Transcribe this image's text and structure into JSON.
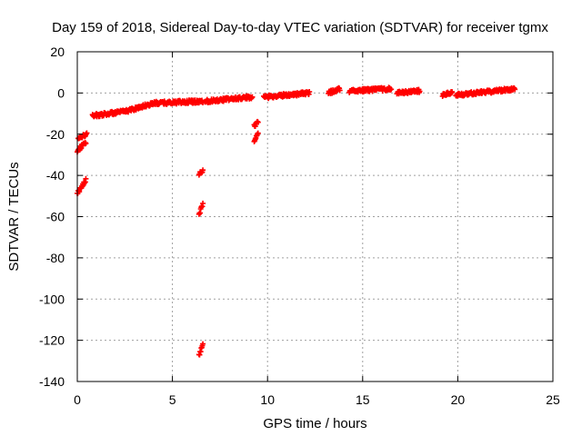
{
  "chart_data": {
    "type": "scatter",
    "title": "Day 159 of 2018, Sidereal Day-to-day VTEC variation (SDTVAR) for receiver tgmx",
    "xlabel": "GPS time / hours",
    "ylabel": "SDTVAR / TECUs",
    "xlim": [
      0,
      25
    ],
    "ylim": [
      -140,
      20
    ],
    "xticks": [
      0,
      5,
      10,
      15,
      20,
      25
    ],
    "yticks": [
      -140,
      -120,
      -100,
      -80,
      -60,
      -40,
      -20,
      0,
      20
    ],
    "grid": true,
    "marker": "plus",
    "series_color": "#ff0000",
    "clusters": [
      {
        "name": "early-low",
        "x": [
          0.0,
          0.45
        ],
        "y": [
          -49,
          -42
        ]
      },
      {
        "name": "early-mid",
        "x": [
          0.0,
          0.45
        ],
        "y": [
          -28,
          -24
        ]
      },
      {
        "name": "early-top",
        "x": [
          0.05,
          0.5
        ],
        "y": [
          -22,
          -20
        ]
      },
      {
        "name": "rise-1",
        "x": [
          0.8,
          2.5
        ],
        "y": [
          -11,
          -9
        ]
      },
      {
        "name": "rise-2",
        "x": [
          2.5,
          4.0
        ],
        "y": [
          -9,
          -5
        ]
      },
      {
        "name": "plateau-1",
        "x": [
          4.0,
          6.6
        ],
        "y": [
          -5,
          -4
        ]
      },
      {
        "name": "plateau-2",
        "x": [
          6.7,
          9.2
        ],
        "y": [
          -4,
          -2
        ]
      },
      {
        "name": "dip-6-5-a",
        "x": [
          6.4,
          6.6
        ],
        "y": [
          -39,
          -38
        ]
      },
      {
        "name": "dip-6-5-b",
        "x": [
          6.4,
          6.6
        ],
        "y": [
          -59,
          -54
        ]
      },
      {
        "name": "dip-6-5-c",
        "x": [
          6.4,
          6.6
        ],
        "y": [
          -127,
          -122
        ]
      },
      {
        "name": "dip-9-5-a",
        "x": [
          9.3,
          9.5
        ],
        "y": [
          -16,
          -14
        ]
      },
      {
        "name": "dip-9-5-b",
        "x": [
          9.3,
          9.5
        ],
        "y": [
          -23,
          -20
        ]
      },
      {
        "name": "flat-1",
        "x": [
          9.8,
          12.2
        ],
        "y": [
          -2,
          0
        ]
      },
      {
        "name": "flat-2",
        "x": [
          13.2,
          13.8
        ],
        "y": [
          0,
          2
        ]
      },
      {
        "name": "flat-3",
        "x": [
          14.3,
          16.5
        ],
        "y": [
          1,
          2
        ]
      },
      {
        "name": "flat-4",
        "x": [
          16.8,
          18.0
        ],
        "y": [
          0,
          1
        ]
      },
      {
        "name": "flat-5",
        "x": [
          19.2,
          19.7
        ],
        "y": [
          -1,
          0
        ]
      },
      {
        "name": "flat-6",
        "x": [
          19.9,
          23.0
        ],
        "y": [
          -1,
          2
        ]
      }
    ]
  }
}
